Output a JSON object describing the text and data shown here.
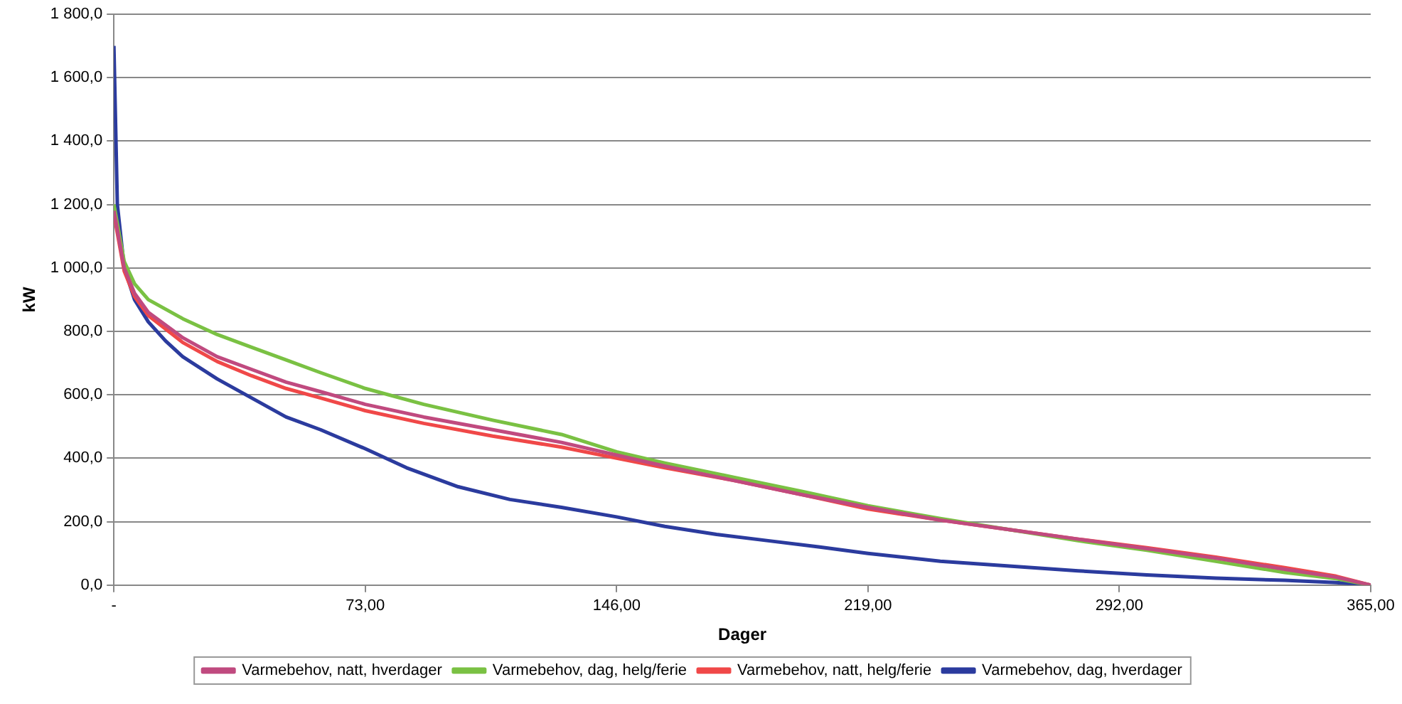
{
  "chart_data": {
    "type": "line",
    "xlabel": "Dager",
    "ylabel": "kW",
    "xlim": [
      0,
      365
    ],
    "xticks": [
      {
        "value": 0,
        "label": "-"
      },
      {
        "value": 73,
        "label": "73,00"
      },
      {
        "value": 146,
        "label": "146,00"
      },
      {
        "value": 219,
        "label": "219,00"
      },
      {
        "value": 292,
        "label": "292,00"
      },
      {
        "value": 365,
        "label": "365,00"
      }
    ],
    "ylim": [
      0,
      1800
    ],
    "yticks": [
      {
        "value": 0,
        "label": "0,0"
      },
      {
        "value": 200,
        "label": "200,0"
      },
      {
        "value": 400,
        "label": "400,0"
      },
      {
        "value": 600,
        "label": "600,0"
      },
      {
        "value": 800,
        "label": "800,0"
      },
      {
        "value": 1000,
        "label": "1 000,0"
      },
      {
        "value": 1200,
        "label": "1 200,0"
      },
      {
        "value": 1400,
        "label": "1 400,0"
      },
      {
        "value": 1600,
        "label": "1 600,0"
      },
      {
        "value": 1800,
        "label": "1 800,0"
      }
    ],
    "grid": "y",
    "legend": "bottom",
    "marker": "none",
    "line_style": "solid",
    "x": [
      0,
      3,
      6,
      10,
      20,
      30,
      40,
      50,
      60,
      73,
      90,
      110,
      130,
      146,
      160,
      180,
      200,
      219,
      240,
      260,
      280,
      300,
      320,
      340,
      355,
      365
    ],
    "series": [
      {
        "name": "Varmebehov, natt, hverdager",
        "color": "#c04a7f",
        "values": [
          1180,
          1000,
          920,
          860,
          780,
          720,
          680,
          640,
          610,
          570,
          530,
          490,
          450,
          410,
          375,
          330,
          285,
          245,
          205,
          175,
          145,
          115,
          85,
          50,
          25,
          0
        ]
      },
      {
        "name": "Varmebehov, dag, helg/ferie",
        "color": "#7ac143",
        "values": [
          1200,
          1020,
          950,
          900,
          840,
          790,
          750,
          710,
          670,
          620,
          570,
          520,
          475,
          420,
          385,
          340,
          295,
          250,
          210,
          175,
          140,
          110,
          75,
          40,
          20,
          0
        ]
      },
      {
        "name": "Varmebehov, natt, helg/ferie",
        "color": "#f04848",
        "values": [
          1170,
          990,
          910,
          850,
          765,
          705,
          660,
          620,
          590,
          550,
          510,
          470,
          435,
          400,
          370,
          330,
          285,
          240,
          205,
          175,
          145,
          118,
          88,
          55,
          28,
          0
        ]
      },
      {
        "name": "Varmebehov, dag, hverdager",
        "color": "#2b3b9e",
        "x": [
          0,
          1,
          3,
          6,
          10,
          15,
          20,
          30,
          40,
          50,
          60,
          73,
          85,
          100,
          115,
          130,
          146,
          160,
          175,
          190,
          205,
          219,
          240,
          260,
          280,
          300,
          320,
          340,
          355,
          365
        ],
        "values": [
          1700,
          1200,
          1000,
          900,
          830,
          770,
          720,
          650,
          590,
          530,
          490,
          430,
          370,
          310,
          270,
          245,
          215,
          185,
          160,
          140,
          120,
          100,
          75,
          60,
          45,
          32,
          22,
          15,
          8,
          0
        ]
      }
    ]
  }
}
